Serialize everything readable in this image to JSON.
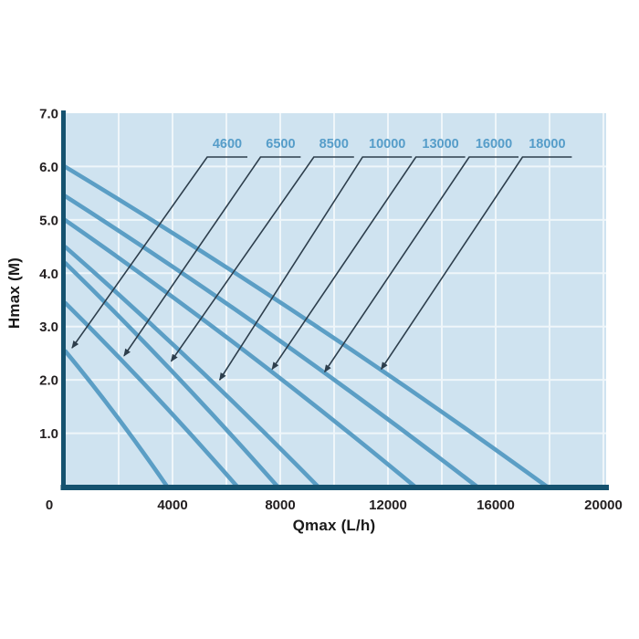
{
  "page": {
    "background": "#ffffff"
  },
  "chart_data": {
    "type": "line",
    "title": "",
    "xlabel": "Qmax (L/h)",
    "ylabel": "Hmax (M)",
    "xlim": [
      0,
      20000
    ],
    "ylim": [
      0,
      7.0
    ],
    "x_ticks": [
      {
        "v": 0,
        "label": "0"
      },
      {
        "v": 4000,
        "label": "4000"
      },
      {
        "v": 8000,
        "label": "8000"
      },
      {
        "v": 12000,
        "label": "12000"
      },
      {
        "v": 16000,
        "label": "16000"
      },
      {
        "v": 20000,
        "label": "20000"
      }
    ],
    "y_ticks": [
      {
        "v": 1,
        "label": "1.0"
      },
      {
        "v": 2,
        "label": "2.0"
      },
      {
        "v": 3,
        "label": "3.0"
      },
      {
        "v": 4,
        "label": "4.0"
      },
      {
        "v": 5,
        "label": "5.0"
      },
      {
        "v": 6,
        "label": "6.0"
      },
      {
        "v": 7,
        "label": "7.0"
      }
    ],
    "grid": {
      "x_step": 2000,
      "y_step": 1.0
    },
    "legend_position": "top-labels-with-arrows",
    "series": [
      {
        "label": "4600",
        "h_at_q0": 2.55,
        "q_at_h0": 3800,
        "callout_tip": {
          "q": 270,
          "h": 2.6
        }
      },
      {
        "label": "6500",
        "h_at_q0": 3.45,
        "q_at_h0": 6400,
        "callout_tip": {
          "q": 2200,
          "h": 2.45
        }
      },
      {
        "label": "8500",
        "h_at_q0": 4.2,
        "q_at_h0": 7900,
        "callout_tip": {
          "q": 3950,
          "h": 2.35
        }
      },
      {
        "label": "10000",
        "h_at_q0": 4.5,
        "q_at_h0": 9400,
        "callout_tip": {
          "q": 5750,
          "h": 2.0
        }
      },
      {
        "label": "13000",
        "h_at_q0": 5.0,
        "q_at_h0": 13000,
        "callout_tip": {
          "q": 7700,
          "h": 2.2
        }
      },
      {
        "label": "16000",
        "h_at_q0": 5.45,
        "q_at_h0": 15300,
        "callout_tip": {
          "q": 9650,
          "h": 2.15
        }
      },
      {
        "label": "18000",
        "h_at_q0": 6.0,
        "q_at_h0": 17900,
        "callout_tip": {
          "q": 11750,
          "h": 2.2
        }
      }
    ],
    "colors": {
      "plot_bg": "#cfe3f0",
      "grid": "#eff6fa",
      "axis": "#15526f",
      "curve": "#5b9ec5",
      "series_label": "#569dc9",
      "callout": "#2d3e4c",
      "tick_text": "#231f20",
      "axis_title_text": "#1a1a1a"
    }
  }
}
